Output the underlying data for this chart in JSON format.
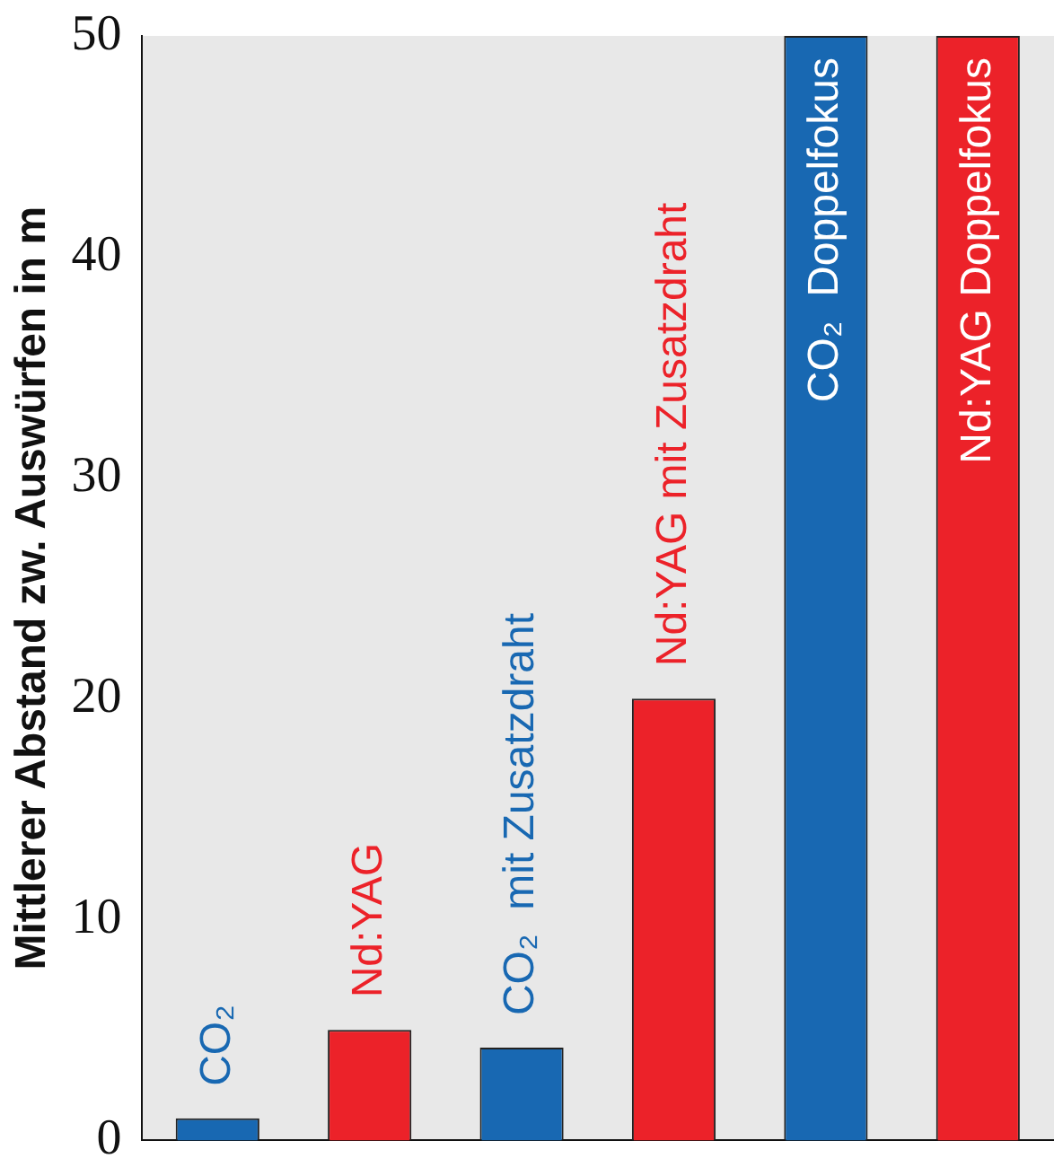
{
  "chart_data": {
    "type": "bar",
    "ylabel": "Mittlerer Abstand zw. Auswürfen in m",
    "categories": [
      "CO₂",
      "Nd:YAG",
      "CO₂  mit Zusatzdraht",
      "Nd:YAG mit Zusatzdraht",
      "CO₂  Doppelfokus",
      "Nd:YAG Doppelfokus"
    ],
    "values": [
      1,
      5,
      4.2,
      20,
      50,
      50
    ],
    "colors": [
      "#1868b2",
      "#ec2229",
      "#1868b2",
      "#ec2229",
      "#1868b2",
      "#ec2229"
    ],
    "ylim": [
      0,
      50
    ],
    "yticks": [
      0,
      10,
      20,
      30,
      40,
      50
    ],
    "grid": false,
    "legend": false
  }
}
